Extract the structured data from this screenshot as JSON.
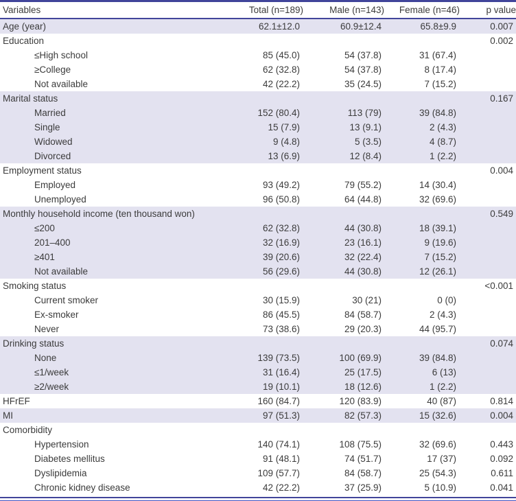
{
  "colors": {
    "rule_dark": "#41459a",
    "rule_light": "#3f51c1",
    "row_shade": "#e3e2f0",
    "text": "#3b3b3b"
  },
  "table": {
    "columns": [
      "Variables",
      "Total (n=189)",
      "Male (n=143)",
      "Female (n=46)",
      "p value"
    ],
    "rows": [
      {
        "label": "Age (year)",
        "indent": false,
        "shaded": true,
        "total": "62.1±12.0",
        "male": "60.9±12.4",
        "female": "65.8±9.9",
        "p": "0.007"
      },
      {
        "label": "Education",
        "indent": false,
        "shaded": false,
        "total": "",
        "male": "",
        "female": "",
        "p": "0.002"
      },
      {
        "label": "≤High school",
        "indent": true,
        "shaded": false,
        "total": "85 (45.0)",
        "male": "54 (37.8)",
        "female": "31 (67.4)",
        "p": ""
      },
      {
        "label": "≥College",
        "indent": true,
        "shaded": false,
        "total": "62 (32.8)",
        "male": "54 (37.8)",
        "female": "8 (17.4)",
        "p": ""
      },
      {
        "label": "Not available",
        "indent": true,
        "shaded": false,
        "total": "42 (22.2)",
        "male": "35 (24.5)",
        "female": "7 (15.2)",
        "p": ""
      },
      {
        "label": "Marital status",
        "indent": false,
        "shaded": true,
        "total": "",
        "male": "",
        "female": "",
        "p": "0.167"
      },
      {
        "label": "Married",
        "indent": true,
        "shaded": true,
        "total": "152 (80.4)",
        "male": "113 (79)",
        "female": "39 (84.8)",
        "p": ""
      },
      {
        "label": "Single",
        "indent": true,
        "shaded": true,
        "total": "15 (7.9)",
        "male": "13 (9.1)",
        "female": "2 (4.3)",
        "p": ""
      },
      {
        "label": "Widowed",
        "indent": true,
        "shaded": true,
        "total": "9 (4.8)",
        "male": "5 (3.5)",
        "female": "4 (8.7)",
        "p": ""
      },
      {
        "label": "Divorced",
        "indent": true,
        "shaded": true,
        "total": "13 (6.9)",
        "male": "12 (8.4)",
        "female": "1 (2.2)",
        "p": ""
      },
      {
        "label": "Employment status",
        "indent": false,
        "shaded": false,
        "total": "",
        "male": "",
        "female": "",
        "p": "0.004"
      },
      {
        "label": "Employed",
        "indent": true,
        "shaded": false,
        "total": "93 (49.2)",
        "male": "79 (55.2)",
        "female": "14 (30.4)",
        "p": ""
      },
      {
        "label": "Unemployed",
        "indent": true,
        "shaded": false,
        "total": "96 (50.8)",
        "male": "64 (44.8)",
        "female": "32 (69.6)",
        "p": ""
      },
      {
        "label": "Monthly household income (ten thousand won)",
        "indent": false,
        "shaded": true,
        "total": "",
        "male": "",
        "female": "",
        "p": "0.549"
      },
      {
        "label": "≤200",
        "indent": true,
        "shaded": true,
        "total": "62 (32.8)",
        "male": "44 (30.8)",
        "female": "18 (39.1)",
        "p": ""
      },
      {
        "label": "201–400",
        "indent": true,
        "shaded": true,
        "total": "32 (16.9)",
        "male": "23 (16.1)",
        "female": "9 (19.6)",
        "p": ""
      },
      {
        "label": "≥401",
        "indent": true,
        "shaded": true,
        "total": "39 (20.6)",
        "male": "32 (22.4)",
        "female": "7 (15.2)",
        "p": ""
      },
      {
        "label": "Not available",
        "indent": true,
        "shaded": true,
        "total": "56 (29.6)",
        "male": "44 (30.8)",
        "female": "12 (26.1)",
        "p": ""
      },
      {
        "label": "Smoking status",
        "indent": false,
        "shaded": false,
        "total": "",
        "male": "",
        "female": "",
        "p": "<0.001"
      },
      {
        "label": "Current smoker",
        "indent": true,
        "shaded": false,
        "total": "30 (15.9)",
        "male": "30 (21)",
        "female": "0 (0)",
        "p": ""
      },
      {
        "label": "Ex-smoker",
        "indent": true,
        "shaded": false,
        "total": "86 (45.5)",
        "male": "84 (58.7)",
        "female": "2 (4.3)",
        "p": ""
      },
      {
        "label": "Never",
        "indent": true,
        "shaded": false,
        "total": "73 (38.6)",
        "male": "29 (20.3)",
        "female": "44 (95.7)",
        "p": ""
      },
      {
        "label": "Drinking status",
        "indent": false,
        "shaded": true,
        "total": "",
        "male": "",
        "female": "",
        "p": "0.074"
      },
      {
        "label": "None",
        "indent": true,
        "shaded": true,
        "total": "139 (73.5)",
        "male": "100 (69.9)",
        "female": "39 (84.8)",
        "p": ""
      },
      {
        "label": "≤1/week",
        "indent": true,
        "shaded": true,
        "total": "31 (16.4)",
        "male": "25 (17.5)",
        "female": "6 (13)",
        "p": ""
      },
      {
        "label": "≥2/week",
        "indent": true,
        "shaded": true,
        "total": "19 (10.1)",
        "male": "18 (12.6)",
        "female": "1 (2.2)",
        "p": ""
      },
      {
        "label": "HFrEF",
        "indent": false,
        "shaded": false,
        "total": "160 (84.7)",
        "male": "120 (83.9)",
        "female": "40 (87)",
        "p": "0.814"
      },
      {
        "label": "MI",
        "indent": false,
        "shaded": true,
        "total": "97 (51.3)",
        "male": "82 (57.3)",
        "female": "15 (32.6)",
        "p": "0.004"
      },
      {
        "label": "Comorbidity",
        "indent": false,
        "shaded": false,
        "total": "",
        "male": "",
        "female": "",
        "p": ""
      },
      {
        "label": "Hypertension",
        "indent": true,
        "shaded": false,
        "total": "140 (74.1)",
        "male": "108 (75.5)",
        "female": "32 (69.6)",
        "p": "0.443"
      },
      {
        "label": "Diabetes mellitus",
        "indent": true,
        "shaded": false,
        "total": "91 (48.1)",
        "male": "74 (51.7)",
        "female": "17 (37)",
        "p": "0.092"
      },
      {
        "label": "Dyslipidemia",
        "indent": true,
        "shaded": false,
        "total": "109 (57.7)",
        "male": "84 (58.7)",
        "female": "25 (54.3)",
        "p": "0.611"
      },
      {
        "label": "Chronic kidney disease",
        "indent": true,
        "shaded": false,
        "total": "42 (22.2)",
        "male": "37 (25.9)",
        "female": "5 (10.9)",
        "p": "0.041"
      }
    ]
  }
}
